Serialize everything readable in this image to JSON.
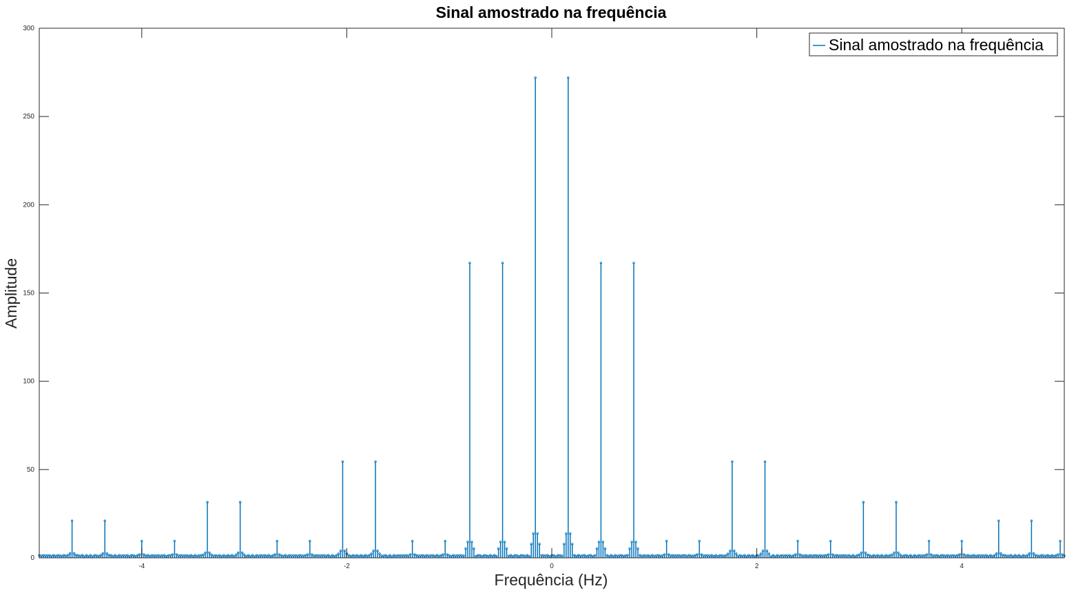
{
  "chart_data": {
    "type": "stem",
    "title": "Sinal amostrado na frequência",
    "xlabel": "Frequência (Hz)",
    "ylabel": "Amplitude",
    "xlim": [
      -5,
      5
    ],
    "ylim": [
      0,
      300
    ],
    "xticks": [
      -4,
      -2,
      0,
      2,
      4
    ],
    "yticks": [
      0,
      50,
      100,
      150,
      200,
      250,
      300
    ],
    "grid": false,
    "legend_position": "top-right",
    "series": [
      {
        "name": "Sinal amostrado na frequência",
        "color": "#0072BD",
        "marker": "circle",
        "peaks": [
          {
            "x": -4.68,
            "y": 21
          },
          {
            "x": -4.36,
            "y": 21
          },
          {
            "x": -4.0,
            "y": 9.5
          },
          {
            "x": -3.68,
            "y": 9.5
          },
          {
            "x": -3.36,
            "y": 31.5
          },
          {
            "x": -3.04,
            "y": 31.5
          },
          {
            "x": -2.68,
            "y": 9.5
          },
          {
            "x": -2.36,
            "y": 9.5
          },
          {
            "x": -2.04,
            "y": 54.5
          },
          {
            "x": -1.72,
            "y": 54.5
          },
          {
            "x": -1.36,
            "y": 9.5
          },
          {
            "x": -1.04,
            "y": 9.5
          },
          {
            "x": -0.8,
            "y": 167
          },
          {
            "x": -0.48,
            "y": 167
          },
          {
            "x": -0.16,
            "y": 272
          },
          {
            "x": 0.16,
            "y": 272
          },
          {
            "x": 0.48,
            "y": 167
          },
          {
            "x": 0.8,
            "y": 167
          },
          {
            "x": 1.12,
            "y": 9.5
          },
          {
            "x": 1.44,
            "y": 9.5
          },
          {
            "x": 1.76,
            "y": 54.5
          },
          {
            "x": 2.08,
            "y": 54.5
          },
          {
            "x": 2.4,
            "y": 9.5
          },
          {
            "x": 2.72,
            "y": 9.5
          },
          {
            "x": 3.04,
            "y": 31.5
          },
          {
            "x": 3.36,
            "y": 31.5
          },
          {
            "x": 3.68,
            "y": 9.5
          },
          {
            "x": 4.0,
            "y": 9.5
          },
          {
            "x": 4.36,
            "y": 21
          },
          {
            "x": 4.68,
            "y": 21
          },
          {
            "x": 4.96,
            "y": 9.5
          }
        ],
        "noise_floor": 1.5,
        "sample_spacing": 0.02
      }
    ]
  }
}
